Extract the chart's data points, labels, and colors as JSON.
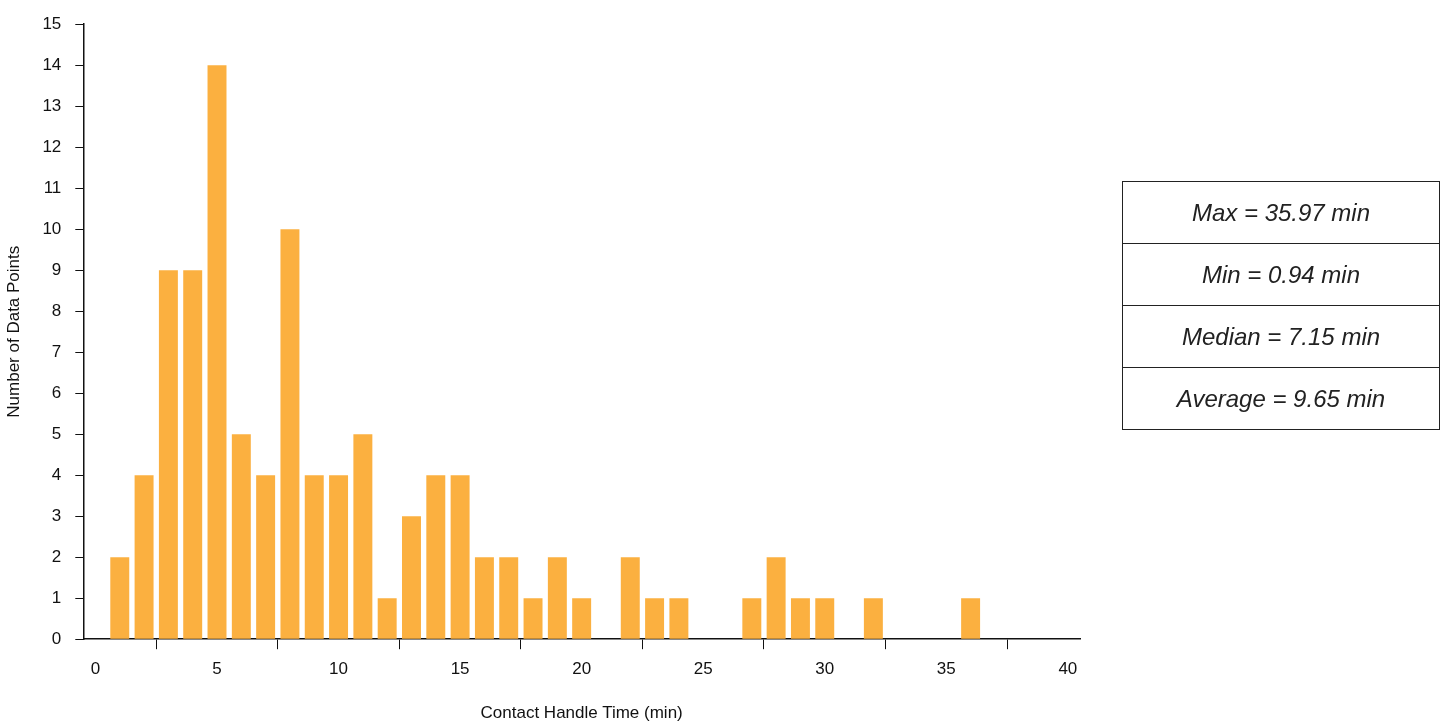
{
  "chart_data": {
    "type": "histogram",
    "xlabel": "Contact Handle Time (min)",
    "ylabel": "Number of Data Points",
    "bins": [
      -0.5,
      0.5,
      1.5,
      2.5,
      3.5,
      4.5,
      5.5,
      6.5,
      7.5,
      8.5,
      9.5,
      10.5,
      11.5,
      12.5,
      13.5,
      14.5,
      15.5,
      16.5,
      17.5,
      18.5,
      19.5,
      20.5,
      21.5,
      22.5,
      23.5,
      24.5,
      25.5,
      26.5,
      27.5,
      28.5,
      29.5,
      30.5,
      31.5,
      32.5,
      33.5,
      34.5,
      35.5,
      36.5,
      37.5,
      38.5,
      39.5,
      40.5
    ],
    "values": [
      0,
      2,
      4,
      9,
      9,
      14,
      5,
      4,
      10,
      4,
      4,
      5,
      1,
      3,
      4,
      4,
      2,
      2,
      1,
      2,
      1,
      0,
      2,
      1,
      1,
      0,
      0,
      1,
      2,
      1,
      1,
      0,
      1,
      0,
      0,
      0,
      1,
      0,
      0,
      0,
      0
    ],
    "color": "#fbb040",
    "xlim": [
      -0.5,
      40.5
    ],
    "xticks": [
      0,
      5,
      10,
      15,
      20,
      25,
      30,
      35,
      40
    ],
    "ylim": [
      0,
      15
    ],
    "yticks": [
      0,
      1,
      2,
      3,
      4,
      5,
      6,
      7,
      8,
      9,
      10,
      11,
      12,
      13,
      14,
      15
    ],
    "grid": false,
    "legend": false,
    "annotations": [
      "Max = 35.97 min",
      "Min = 0.94 min",
      "Median = 7.15 min",
      "Average = 9.65 min"
    ]
  }
}
